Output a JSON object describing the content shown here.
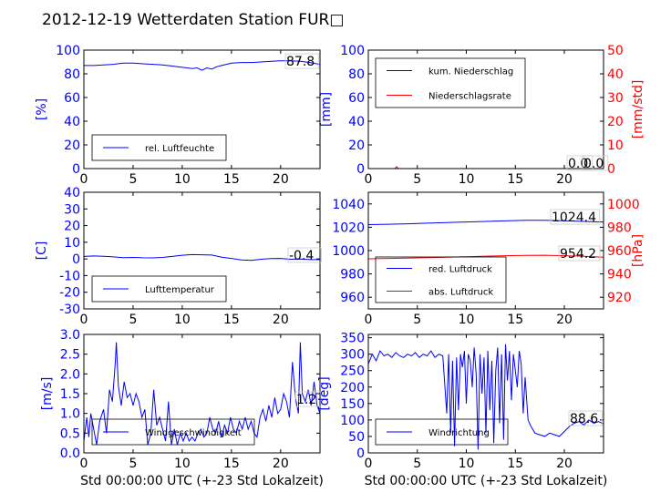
{
  "title": "2012-12-19 Wetterdaten Station FUR□",
  "x_axis_label": "Std 00:00:00 UTC (+-23 Std Lokalzeit)",
  "colors": {
    "blue": "#0000ff",
    "red": "#ff0000",
    "axis": "#000000",
    "legend_edge": "#000000"
  },
  "chart_data": [
    {
      "id": "humidity",
      "type": "line",
      "xlim": [
        0,
        24
      ],
      "ylim": [
        0,
        100
      ],
      "xticks": [
        0,
        5,
        10,
        15,
        20
      ],
      "yticks": [
        0,
        20,
        40,
        60,
        80,
        100
      ],
      "ylabel": "[%]",
      "readout": "87.8",
      "legend": "lower-left",
      "series": [
        {
          "name": "rel. Luftfeuchte",
          "color": "#0000ff",
          "x": [
            0,
            1,
            2,
            3,
            4,
            5,
            6,
            7,
            8,
            9,
            10,
            10.5,
            11,
            11.5,
            12,
            12.5,
            13,
            13.5,
            14,
            15,
            16,
            17,
            18,
            19,
            20,
            21,
            22,
            23,
            24
          ],
          "y": [
            87,
            87,
            87.5,
            88,
            89,
            89,
            88.5,
            88,
            87.5,
            86.5,
            85.5,
            85,
            84.5,
            85,
            83,
            85,
            84,
            86,
            87,
            89,
            89.5,
            89.5,
            90,
            90.5,
            91,
            91,
            90.5,
            89.5,
            88
          ]
        }
      ]
    },
    {
      "id": "precipitation",
      "type": "line",
      "xlim": [
        0,
        24
      ],
      "ylim": [
        0,
        100
      ],
      "xticks": [
        0,
        5,
        10,
        15,
        20
      ],
      "yticks": [
        0,
        20,
        40,
        60,
        80,
        100
      ],
      "ylabel": "[mm]",
      "ylim_right": [
        0,
        50
      ],
      "yticks_right": [
        0,
        10,
        20,
        30,
        40,
        50
      ],
      "ylabel_right": "[mm/std]",
      "readouts": [
        "0.0",
        "0.0"
      ],
      "legend": "top-left",
      "series": [
        {
          "name": "kum. Niederschlag",
          "color": "#0000ff",
          "axis": "left",
          "x": [
            0,
            24
          ],
          "y": [
            0,
            0
          ]
        },
        {
          "name": "Niederschlagsrate",
          "color": "#ff0000",
          "axis": "right",
          "x": [
            0,
            2.7,
            2.8,
            2.9,
            3.0,
            3.1,
            24
          ],
          "y": [
            0,
            0,
            0.4,
            0.8,
            0.2,
            0,
            0
          ]
        }
      ]
    },
    {
      "id": "temperature",
      "type": "line",
      "xlim": [
        0,
        24
      ],
      "ylim": [
        -30,
        40
      ],
      "xticks": [
        0,
        5,
        10,
        15,
        20
      ],
      "yticks": [
        -30,
        -20,
        -10,
        0,
        10,
        20,
        30,
        40
      ],
      "ylabel": "[C]",
      "readout": "-0.4",
      "legend": "lower-left",
      "series": [
        {
          "name": "Lufttemperatur",
          "color": "#0000ff",
          "x": [
            0,
            1,
            2,
            3,
            4,
            5,
            6,
            7,
            8,
            9,
            10,
            11,
            12,
            13,
            14,
            15,
            16,
            17,
            18,
            19,
            20,
            21,
            22,
            23,
            24
          ],
          "y": [
            1.5,
            1.8,
            1.6,
            1.2,
            0.8,
            0.9,
            0.7,
            0.6,
            0.9,
            1.5,
            2.2,
            2.6,
            2.5,
            2.3,
            1.0,
            0.3,
            -0.6,
            -0.9,
            -0.2,
            0.2,
            0.3,
            -0.2,
            -0.1,
            -0.4,
            -0.4
          ]
        }
      ]
    },
    {
      "id": "pressure",
      "type": "line",
      "xlim": [
        0,
        24
      ],
      "ylim": [
        950,
        1050
      ],
      "xticks": [
        0,
        5,
        10,
        15,
        20
      ],
      "yticks": [
        960,
        980,
        1000,
        1020,
        1040
      ],
      "ylabel_right": "[hPa]",
      "ylim_right": [
        910,
        1010
      ],
      "yticks_right": [
        920,
        940,
        960,
        980,
        1000
      ],
      "readouts": [
        "1024.4",
        "954.2"
      ],
      "legend": "lower-left",
      "series": [
        {
          "name": "red. Luftdruck",
          "color": "#0000ff",
          "axis": "left",
          "x": [
            0,
            2,
            4,
            6,
            8,
            10,
            12,
            14,
            16,
            18,
            20,
            22,
            24
          ],
          "y": [
            1022.3,
            1022.6,
            1023.0,
            1023.5,
            1024.0,
            1024.5,
            1025.0,
            1025.5,
            1025.9,
            1026.0,
            1025.6,
            1025.0,
            1024.5
          ]
        },
        {
          "name": "abs. Luftdruck",
          "color": "#ff0000",
          "axis": "right",
          "x": [
            0,
            2,
            4,
            6,
            8,
            10,
            12,
            14,
            16,
            18,
            20,
            22,
            24
          ],
          "y": [
            953.0,
            953.3,
            953.6,
            954.0,
            954.4,
            954.8,
            955.2,
            955.6,
            955.9,
            956.0,
            955.6,
            955.1,
            954.4
          ]
        }
      ]
    },
    {
      "id": "wind_speed",
      "type": "line",
      "xlim": [
        0,
        24
      ],
      "ylim": [
        0,
        3.0
      ],
      "xticks": [
        0,
        5,
        10,
        15,
        20
      ],
      "yticks": [
        0.0,
        0.5,
        1.0,
        1.5,
        2.0,
        2.5,
        3.0
      ],
      "ytick_labels": [
        "0.0",
        "0.5",
        "1.0",
        "1.5",
        "2.0",
        "2.5",
        "3.0"
      ],
      "ylabel": "[m/s]",
      "xlabel": "Std 00:00:00 UTC (+-23 Std Lokalzeit)",
      "readout": "1.2",
      "legend": "lower-center",
      "series": [
        {
          "name": "Windgeschwindigkeit",
          "color": "#0000ff",
          "x": [
            0,
            0.3,
            0.5,
            0.7,
            1.0,
            1.3,
            1.6,
            2.0,
            2.3,
            2.6,
            2.9,
            3.2,
            3.3,
            3.5,
            3.8,
            4.1,
            4.4,
            4.7,
            5.0,
            5.3,
            5.6,
            5.9,
            6.2,
            6.5,
            6.8,
            7.1,
            7.4,
            7.7,
            8.0,
            8.3,
            8.6,
            8.9,
            9.2,
            9.5,
            9.8,
            10.1,
            10.4,
            10.7,
            11.0,
            11.3,
            11.6,
            11.9,
            12.2,
            12.5,
            12.8,
            13.1,
            13.4,
            13.7,
            14.0,
            14.3,
            14.6,
            14.9,
            15.2,
            15.5,
            15.8,
            16.1,
            16.4,
            16.7,
            17.0,
            17.3,
            17.6,
            17.9,
            18.2,
            18.5,
            18.8,
            19.1,
            19.4,
            19.7,
            20.0,
            20.3,
            20.6,
            20.9,
            21.2,
            21.5,
            21.8,
            22.0,
            22.2,
            22.5,
            22.8,
            23.1,
            23.4,
            23.7,
            24.0
          ],
          "y": [
            0.3,
            0.9,
            0.4,
            1.0,
            0.6,
            0.2,
            0.8,
            1.1,
            0.5,
            1.6,
            1.3,
            2.3,
            2.8,
            1.7,
            1.2,
            1.8,
            1.4,
            1.5,
            1.2,
            1.5,
            1.3,
            0.9,
            1.1,
            0.2,
            0.5,
            1.6,
            0.7,
            0.9,
            0.6,
            0.3,
            1.3,
            0.2,
            0.6,
            0.2,
            0.5,
            0.3,
            0.5,
            0.3,
            0.4,
            0.3,
            0.5,
            0.6,
            0.4,
            0.5,
            0.9,
            0.6,
            0.5,
            0.8,
            0.4,
            0.7,
            0.5,
            0.9,
            0.6,
            0.5,
            0.8,
            0.6,
            0.9,
            0.6,
            0.8,
            0.5,
            0.4,
            0.9,
            1.1,
            0.8,
            1.2,
            0.9,
            1.4,
            1.0,
            1.1,
            1.5,
            1.3,
            0.9,
            2.3,
            1.4,
            1.0,
            2.8,
            1.5,
            1.3,
            1.6,
            1.2,
            1.8,
            1.2,
            1.0
          ]
        }
      ]
    },
    {
      "id": "wind_direction",
      "type": "line",
      "xlim": [
        0,
        24
      ],
      "ylim": [
        0,
        360
      ],
      "xticks": [
        0,
        5,
        10,
        15,
        20
      ],
      "yticks": [
        0,
        50,
        100,
        150,
        200,
        250,
        300,
        350
      ],
      "ylabel": "[deg]",
      "xlabel": "Std 00:00:00 UTC (+-23 Std Lokalzeit)",
      "readout": "88.6",
      "legend": "lower-left",
      "series": [
        {
          "name": "Windrichtung",
          "color": "#0000ff",
          "x": [
            0,
            0.4,
            0.8,
            1.2,
            1.6,
            2.0,
            2.4,
            2.8,
            3.2,
            3.6,
            4.0,
            4.4,
            4.8,
            5.2,
            5.6,
            6.0,
            6.4,
            6.8,
            7.2,
            7.6,
            8.0,
            8.2,
            8.4,
            8.6,
            8.8,
            9.0,
            9.2,
            9.4,
            9.6,
            9.8,
            10.0,
            10.2,
            10.4,
            10.6,
            10.8,
            11.0,
            11.2,
            11.4,
            11.6,
            11.8,
            12.0,
            12.2,
            12.4,
            12.6,
            12.8,
            13.0,
            13.2,
            13.4,
            13.6,
            13.8,
            14.0,
            14.2,
            14.4,
            14.6,
            14.8,
            15.0,
            15.2,
            15.4,
            15.6,
            15.8,
            16.0,
            16.3,
            16.6,
            17.0,
            17.5,
            18.0,
            18.5,
            19.0,
            19.5,
            20.0,
            20.5,
            21.0,
            21.5,
            22.0,
            22.5,
            23.0,
            23.5,
            24.0
          ],
          "y": [
            270,
            300,
            280,
            310,
            295,
            300,
            290,
            305,
            295,
            290,
            300,
            295,
            305,
            290,
            300,
            295,
            310,
            290,
            300,
            295,
            120,
            300,
            60,
            280,
            20,
            290,
            130,
            300,
            260,
            310,
            150,
            300,
            280,
            200,
            320,
            240,
            10,
            300,
            180,
            290,
            60,
            310,
            130,
            280,
            30,
            250,
            320,
            90,
            300,
            40,
            330,
            220,
            310,
            160,
            300,
            250,
            200,
            310,
            270,
            120,
            230,
            100,
            80,
            60,
            55,
            50,
            60,
            55,
            50,
            65,
            80,
            90,
            95,
            85,
            100,
            90,
            95,
            88
          ]
        }
      ]
    }
  ]
}
